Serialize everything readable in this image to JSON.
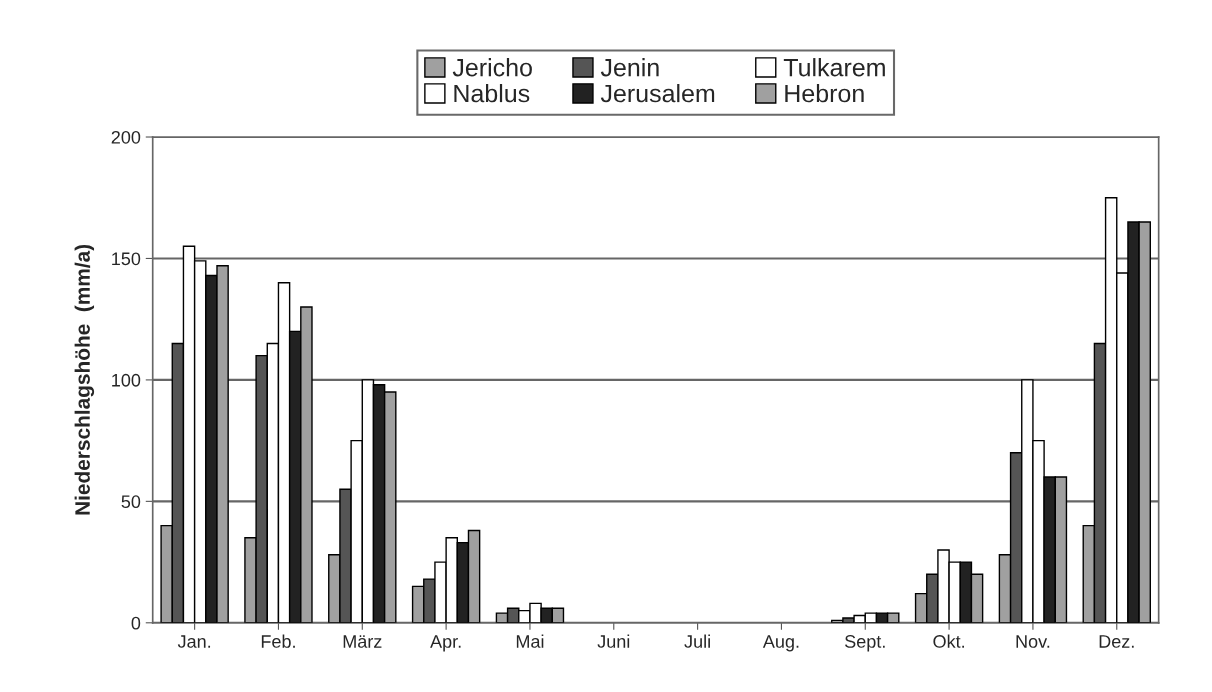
{
  "chart_data": {
    "type": "bar",
    "ylabel": "Niederschlagshöhe  (mm/a)",
    "categories": [
      "Jan.",
      "Feb.",
      "März",
      "Apr.",
      "Mai",
      "Juni",
      "Juli",
      "Aug.",
      "Sept.",
      "Okt.",
      "Nov.",
      "Dez."
    ],
    "series": [
      {
        "name": "Jericho",
        "color": "#a0a0a0",
        "values": [
          40,
          35,
          28,
          15,
          4,
          0,
          0,
          0,
          1,
          12,
          28,
          40
        ]
      },
      {
        "name": "Jenin",
        "color": "#555555",
        "values": [
          115,
          110,
          55,
          18,
          6,
          0,
          0,
          0,
          2,
          20,
          70,
          115
        ]
      },
      {
        "name": "Tulkarem",
        "color": "#ffffff",
        "values": [
          155,
          115,
          75,
          25,
          5,
          0,
          0,
          0,
          3,
          30,
          100,
          175
        ]
      },
      {
        "name": "Nablus",
        "color": "#ffffff",
        "values": [
          149,
          140,
          100,
          35,
          8,
          0,
          0,
          0,
          4,
          25,
          75,
          144
        ]
      },
      {
        "name": "Jerusalem",
        "color": "#222222",
        "values": [
          143,
          120,
          98,
          33,
          6,
          0,
          0,
          0,
          4,
          25,
          60,
          165
        ]
      },
      {
        "name": "Hebron",
        "color": "#a0a0a0",
        "values": [
          147,
          130,
          95,
          38,
          6,
          0,
          0,
          0,
          4,
          20,
          60,
          165
        ]
      }
    ],
    "ylim": [
      0,
      200
    ],
    "yticks": [
      0,
      50,
      100,
      150,
      200
    ],
    "grid": "y",
    "legend": "top"
  }
}
